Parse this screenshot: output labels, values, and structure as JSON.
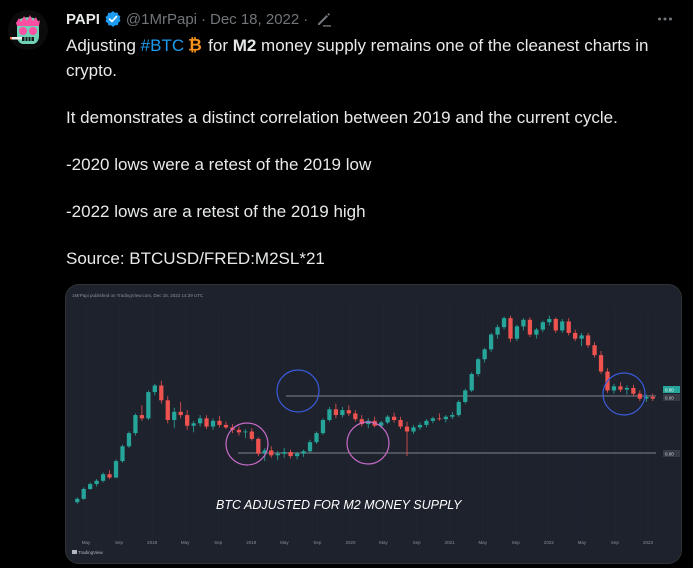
{
  "tweet": {
    "display_name": "PAPI",
    "handle": "@1MrPapi",
    "separator": "·",
    "date": "Dec 18, 2022",
    "avatar_icon": "skull-avatar-icon",
    "verified_icon": "verified-badge-icon",
    "edited_icon": "pencil-edited-icon",
    "more_icon": "more-dots-icon",
    "text": {
      "line1_prefix": "Adjusting ",
      "hashtag": "#BTC",
      "emoji": "bitcoin-emoji-icon",
      "line1_mid": "for ",
      "bold_term": "M2",
      "line1_suffix": " money supply remains one of the cleanest charts in crypto.",
      "para2": "It demonstrates a distinct correlation between 2019 and the current cycle.",
      "para3": "-2020 lows were a retest of the 2019 low",
      "para4": "-2022 lows are a retest of the 2019 high",
      "para5": "Source: BTCUSD/FRED:M2SL*21"
    }
  },
  "chart_image": {
    "header_text": "1MrPapi published on TradingView.com, Dec 15, 2022 14:29 UTC",
    "annotation": "BTC ADJUSTED FOR M2 MONEY SUPPLY",
    "watermark": "TradingView",
    "price_labels": [
      "0.00",
      "0.00",
      "0.00"
    ],
    "x_ticks": [
      "May",
      "Sep",
      "2018",
      "May",
      "Sep",
      "2019",
      "May",
      "Sep",
      "2020",
      "May",
      "Sep",
      "2021",
      "May",
      "Sep",
      "2022",
      "May",
      "Sep",
      "2023"
    ],
    "colors": {
      "up": "#26a69a",
      "down": "#ef5350",
      "background": "#1e222d",
      "circle_pink": "#c86bc8",
      "circle_blue": "#3a5bd9",
      "level_line": "#a0a4ad"
    },
    "candles": [
      [
        4.0,
        4.6,
        3.8,
        4.4
      ],
      [
        4.4,
        5.8,
        4.3,
        5.6
      ],
      [
        5.6,
        6.4,
        5.5,
        6.2
      ],
      [
        6.2,
        6.8,
        5.9,
        6.6
      ],
      [
        6.6,
        7.6,
        6.4,
        7.4
      ],
      [
        7.4,
        7.9,
        6.8,
        7.0
      ],
      [
        7.0,
        9.2,
        6.9,
        9.0
      ],
      [
        9.0,
        11.0,
        8.8,
        10.8
      ],
      [
        10.8,
        12.6,
        10.6,
        12.4
      ],
      [
        12.4,
        14.8,
        12.1,
        14.6
      ],
      [
        14.6,
        15.8,
        13.9,
        14.2
      ],
      [
        14.2,
        17.6,
        14.0,
        17.4
      ],
      [
        17.4,
        18.4,
        17.0,
        18.2
      ],
      [
        18.2,
        18.8,
        16.0,
        16.4
      ],
      [
        16.4,
        16.9,
        13.6,
        14.0
      ],
      [
        14.0,
        15.5,
        13.0,
        15.0
      ],
      [
        15.0,
        16.2,
        14.2,
        14.6
      ],
      [
        14.6,
        15.2,
        12.8,
        13.3
      ],
      [
        13.3,
        13.9,
        12.5,
        13.6
      ],
      [
        13.6,
        14.6,
        13.2,
        14.2
      ],
      [
        14.2,
        14.6,
        12.9,
        13.2
      ],
      [
        13.2,
        14.2,
        12.8,
        13.9
      ],
      [
        13.9,
        14.5,
        13.1,
        13.4
      ],
      [
        13.4,
        13.8,
        12.9,
        13.1
      ],
      [
        13.1,
        13.5,
        12.4,
        12.8
      ],
      [
        12.8,
        13.2,
        12.1,
        12.5
      ],
      [
        12.5,
        12.9,
        11.8,
        12.6
      ],
      [
        12.6,
        13.0,
        11.5,
        11.7
      ],
      [
        11.7,
        11.9,
        9.6,
        9.9
      ],
      [
        9.9,
        10.6,
        9.0,
        10.3
      ],
      [
        10.3,
        10.8,
        9.4,
        9.7
      ],
      [
        9.7,
        10.2,
        9.1,
        9.9
      ],
      [
        9.9,
        10.6,
        9.4,
        10.1
      ],
      [
        10.1,
        10.4,
        9.3,
        9.6
      ],
      [
        9.6,
        10.1,
        9.2,
        9.9
      ],
      [
        9.9,
        10.4,
        9.5,
        10.2
      ],
      [
        10.2,
        11.6,
        10.0,
        11.3
      ],
      [
        11.3,
        12.6,
        11.1,
        12.4
      ],
      [
        12.4,
        14.2,
        12.2,
        14.0
      ],
      [
        14.0,
        15.6,
        13.8,
        15.3
      ],
      [
        15.3,
        16.0,
        14.2,
        14.6
      ],
      [
        14.6,
        15.6,
        14.3,
        15.2
      ],
      [
        15.2,
        15.8,
        14.5,
        14.8
      ],
      [
        14.8,
        15.2,
        13.8,
        14.1
      ],
      [
        14.1,
        14.6,
        13.2,
        13.5
      ],
      [
        13.5,
        14.2,
        13.0,
        13.9
      ],
      [
        13.9,
        14.4,
        13.1,
        13.3
      ],
      [
        13.3,
        13.9,
        13.0,
        13.7
      ],
      [
        13.7,
        14.6,
        13.5,
        14.4
      ],
      [
        14.4,
        14.9,
        13.7,
        14.0
      ],
      [
        14.0,
        14.4,
        12.9,
        13.2
      ],
      [
        13.2,
        13.8,
        9.6,
        12.6
      ],
      [
        12.6,
        13.4,
        12.3,
        13.1
      ],
      [
        13.1,
        13.7,
        12.8,
        13.4
      ],
      [
        13.4,
        14.1,
        13.1,
        13.9
      ],
      [
        13.9,
        14.4,
        13.6,
        14.2
      ],
      [
        14.2,
        14.8,
        13.9,
        14.1
      ],
      [
        14.1,
        14.6,
        13.7,
        14.4
      ],
      [
        14.4,
        15.0,
        14.1,
        14.6
      ],
      [
        14.6,
        16.4,
        14.4,
        16.2
      ],
      [
        16.2,
        17.8,
        16.0,
        17.6
      ],
      [
        17.6,
        19.8,
        17.4,
        19.6
      ],
      [
        19.6,
        21.6,
        19.3,
        21.4
      ],
      [
        21.4,
        22.8,
        21.0,
        22.6
      ],
      [
        22.6,
        24.6,
        22.3,
        24.4
      ],
      [
        24.4,
        25.6,
        23.9,
        25.3
      ],
      [
        25.3,
        26.6,
        25.0,
        26.4
      ],
      [
        26.4,
        26.7,
        23.5,
        23.9
      ],
      [
        23.9,
        25.6,
        23.6,
        25.4
      ],
      [
        25.4,
        26.4,
        24.9,
        26.2
      ],
      [
        26.2,
        26.5,
        24.1,
        24.4
      ],
      [
        24.4,
        25.2,
        23.9,
        25.0
      ],
      [
        25.0,
        26.1,
        24.7,
        25.9
      ],
      [
        25.9,
        26.7,
        25.5,
        26.3
      ],
      [
        26.3,
        26.5,
        24.6,
        24.9
      ],
      [
        24.9,
        26.3,
        24.6,
        26.0
      ],
      [
        26.0,
        26.4,
        24.3,
        24.6
      ],
      [
        24.6,
        25.0,
        23.6,
        23.9
      ],
      [
        23.9,
        24.6,
        23.0,
        24.3
      ],
      [
        24.3,
        24.6,
        22.8,
        23.1
      ],
      [
        23.1,
        23.5,
        21.6,
        21.9
      ],
      [
        21.9,
        22.4,
        19.6,
        19.9
      ],
      [
        19.9,
        20.3,
        17.3,
        17.6
      ],
      [
        17.6,
        18.4,
        17.2,
        18.1
      ],
      [
        18.1,
        18.6,
        17.4,
        17.7
      ],
      [
        17.7,
        18.2,
        17.1,
        17.9
      ],
      [
        17.9,
        18.3,
        16.9,
        17.2
      ],
      [
        17.2,
        17.6,
        16.3,
        16.6
      ],
      [
        16.6,
        17.1,
        16.2,
        16.8
      ],
      [
        16.8,
        17.2,
        16.3,
        16.6
      ]
    ]
  }
}
